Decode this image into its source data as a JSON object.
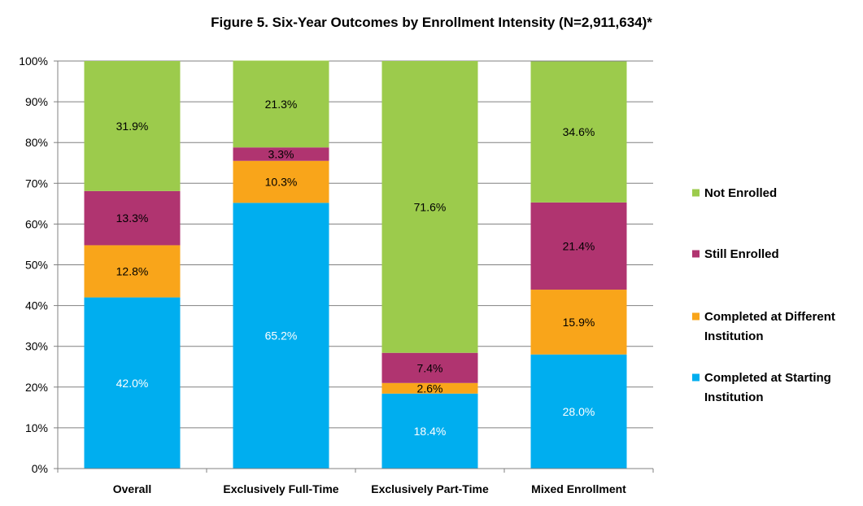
{
  "chart_data": {
    "type": "bar",
    "stacked": true,
    "title": "Figure 5. Six-Year Outcomes by Enrollment Intensity (N=2,911,634)*",
    "categories": [
      "Overall",
      "Exclusively Full-Time",
      "Exclusively Part-Time",
      "Mixed Enrollment"
    ],
    "ylim": [
      0,
      100
    ],
    "yticks": [
      "0%",
      "10%",
      "20%",
      "30%",
      "40%",
      "50%",
      "60%",
      "70%",
      "80%",
      "90%",
      "100%"
    ],
    "grid": true,
    "legend_position": "right",
    "series": [
      {
        "name": "Completed at Starting Institution",
        "legend_lines": [
          "Completed at Starting",
          "Institution"
        ],
        "color": "#00aeef",
        "label_color": "#ffffff",
        "values": [
          42.0,
          65.2,
          18.4,
          28.0
        ],
        "labels": [
          "42.0%",
          "65.2%",
          "18.4%",
          "28.0%"
        ]
      },
      {
        "name": "Completed at Different Institution",
        "legend_lines": [
          "Completed at Different",
          "Institution"
        ],
        "color": "#f9a51a",
        "label_color": "#000000",
        "values": [
          12.8,
          10.3,
          2.6,
          15.9
        ],
        "labels": [
          "12.8%",
          "10.3%",
          "2.6%",
          "15.9%"
        ]
      },
      {
        "name": "Still Enrolled",
        "legend_lines": [
          "Still Enrolled"
        ],
        "color": "#b03470",
        "label_color": "#000000",
        "values": [
          13.3,
          3.3,
          7.4,
          21.4
        ],
        "labels": [
          "13.3%",
          "3.3%",
          "7.4%",
          "21.4%"
        ]
      },
      {
        "name": "Not Enrolled",
        "legend_lines": [
          "Not Enrolled"
        ],
        "color": "#9ccb4c",
        "label_color": "#000000",
        "values": [
          31.9,
          21.3,
          71.6,
          34.6
        ],
        "labels": [
          "31.9%",
          "21.3%",
          "71.6%",
          "34.6%"
        ]
      }
    ]
  }
}
